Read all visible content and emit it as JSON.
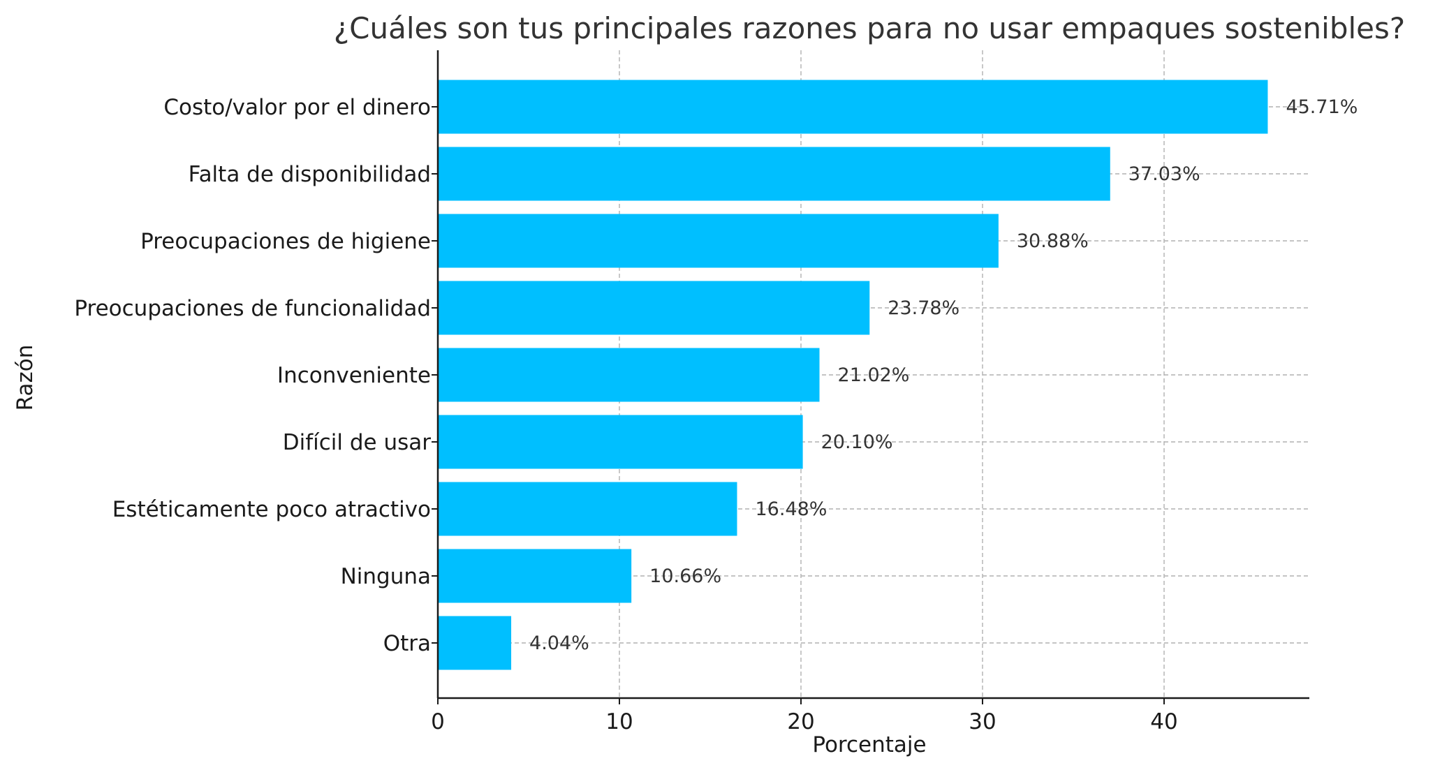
{
  "chart_data": {
    "type": "bar",
    "orientation": "horizontal",
    "title": "¿Cuáles son tus principales razones para no usar empaques sostenibles?",
    "xlabel": "Porcentaje",
    "ylabel": "Razón",
    "categories": [
      "Costo/valor por el dinero",
      "Falta de disponibilidad",
      "Preocupaciones de higiene",
      "Preocupaciones de funcionalidad",
      "Inconveniente",
      "Difícil de usar",
      "Estéticamente poco atractivo",
      "Ninguna",
      "Otra"
    ],
    "values": [
      45.71,
      37.03,
      30.88,
      23.78,
      21.02,
      20.1,
      16.48,
      10.66,
      4.04
    ],
    "value_labels": [
      "45.71%",
      "37.03%",
      "30.88%",
      "23.78%",
      "21.02%",
      "20.10%",
      "16.48%",
      "10.66%",
      "4.04%"
    ],
    "xlim": [
      0,
      48
    ],
    "xticks": [
      0,
      10,
      20,
      30,
      40
    ],
    "xtick_labels": [
      "0",
      "10",
      "20",
      "30",
      "40"
    ],
    "grid": true,
    "bar_color": "#00bfff"
  }
}
